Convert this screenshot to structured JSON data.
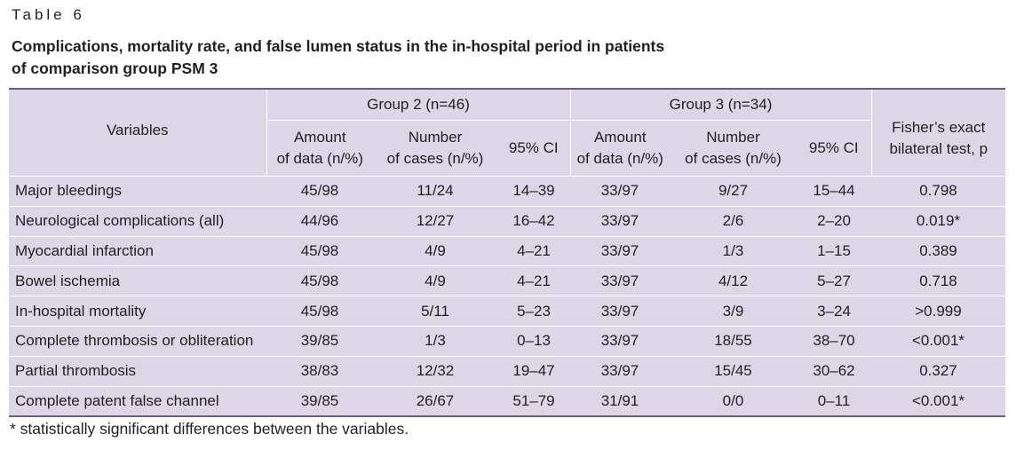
{
  "table_label": "Table 6",
  "caption_line1": "Complications, mortality rate, and false lumen status in the in-hospital period in patients",
  "caption_line2": "of comparison group PSM 3",
  "header": {
    "variables": "Variables",
    "group2": "Group 2 (n=46)",
    "group3": "Group 3 (n=34)",
    "fisher_line1": "Fisher’s exact",
    "fisher_line2": "bilateral test, p",
    "amount_line1": "Amount",
    "amount_line2": "of data (n/%)",
    "number_line1": "Number",
    "number_line2": "of cases (n/%)",
    "ci": "95% CI"
  },
  "rows": [
    {
      "variable": "Major bleedings",
      "g2_amount": "45/98",
      "g2_cases": "11/24",
      "g2_ci": "14–39",
      "g3_amount": "33/97",
      "g3_cases": "9/27",
      "g3_ci": "15–44",
      "p": "0.798"
    },
    {
      "variable": "Neurological complications (all)",
      "g2_amount": "44/96",
      "g2_cases": "12/27",
      "g2_ci": "16–42",
      "g3_amount": "33/97",
      "g3_cases": "2/6",
      "g3_ci": "2–20",
      "p": "0.019*"
    },
    {
      "variable": "Myocardial infarction",
      "g2_amount": "45/98",
      "g2_cases": "4/9",
      "g2_ci": "4–21",
      "g3_amount": "33/97",
      "g3_cases": "1/3",
      "g3_ci": "1–15",
      "p": "0.389"
    },
    {
      "variable": "Bowel ischemia",
      "g2_amount": "45/98",
      "g2_cases": "4/9",
      "g2_ci": "4–21",
      "g3_amount": "33/97",
      "g3_cases": "4/12",
      "g3_ci": "5–27",
      "p": "0.718"
    },
    {
      "variable": "In-hospital mortality",
      "g2_amount": "45/98",
      "g2_cases": "5/11",
      "g2_ci": "5–23",
      "g3_amount": "33/97",
      "g3_cases": "3/9",
      "g3_ci": "3–24",
      "p": ">0.999"
    },
    {
      "variable": "Complete thrombosis or obliteration",
      "g2_amount": "39/85",
      "g2_cases": "1/3",
      "g2_ci": "0–13",
      "g3_amount": "33/97",
      "g3_cases": "18/55",
      "g3_ci": "38–70",
      "p": "<0.001*"
    },
    {
      "variable": "Partial thrombosis",
      "g2_amount": "38/83",
      "g2_cases": "12/32",
      "g2_ci": "19–47",
      "g3_amount": "33/97",
      "g3_cases": "15/45",
      "g3_ci": "30–62",
      "p": "0.327"
    },
    {
      "variable": "Complete patent false channel",
      "g2_amount": "39/85",
      "g2_cases": "26/67",
      "g2_ci": "51–79",
      "g3_amount": "31/91",
      "g3_cases": "0/0",
      "g3_ci": "0–11",
      "p": "<0.001*"
    }
  ],
  "footnote": "* statistically significant differences between the variables.",
  "colors": {
    "table_bg": "#ddd6e7",
    "rule": "#6a5a8c",
    "text": "#231f20"
  }
}
